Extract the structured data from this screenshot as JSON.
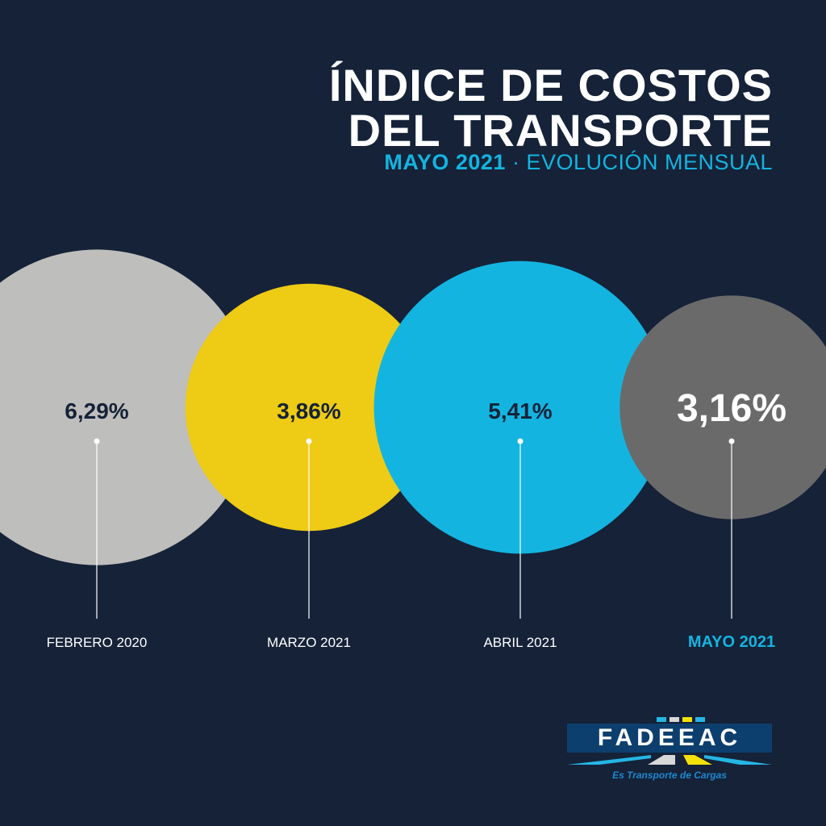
{
  "header": {
    "title_line1": "ÍNDICE DE COSTOS",
    "title_line2": "DEL TRANSPORTE",
    "subtitle_bold": "MAYO 2021",
    "subtitle_rest": " · EVOLUCIÓN MENSUAL"
  },
  "chart_data": {
    "type": "bubble",
    "title": "ÍNDICE DE COSTOS DEL TRANSPORTE",
    "categories": [
      "FEBRERO 2020",
      "MARZO 2021",
      "ABRIL 2021",
      "MAYO 2021"
    ],
    "values": [
      6.29,
      3.86,
      5.41,
      3.16
    ],
    "value_labels": [
      "6,29%",
      "3,86%",
      "5,41%",
      "3,16%"
    ],
    "unit": "%",
    "colors": [
      "#bebebc",
      "#eecb14",
      "#14b4e0",
      "#6a6a6a"
    ],
    "label_colors": [
      "#152238",
      "#152238",
      "#152238",
      "#ffffff"
    ],
    "category_colors": [
      "#ffffff",
      "#ffffff",
      "#ffffff",
      "#14b4e0"
    ],
    "highlighted": "MAYO 2021"
  },
  "logo": {
    "name": "FADEEAC",
    "tagline": "Es Transporte de Cargas"
  },
  "colors": {
    "background": "#152238",
    "accent": "#14b4e0"
  }
}
